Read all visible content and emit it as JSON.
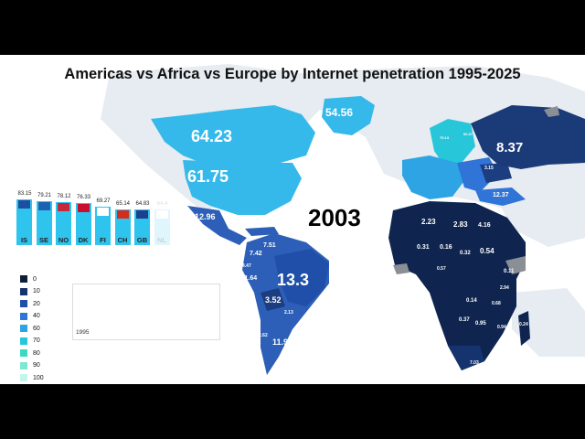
{
  "title": "Americas vs Africa vs  Europe by Internet penetration 1995-2025",
  "year": "2003",
  "map_labels": {
    "canada": "64.23",
    "usa": "61.75",
    "greenland": "54.56",
    "russia": "8.37",
    "brazil": "13.3",
    "mexico": "12.96",
    "argentina": "11.98",
    "bolivia": "3.52",
    "paraguay": "2.13",
    "chile": "2.62",
    "colombia": "7.42",
    "venezuela": "7.51",
    "peru": "11.64",
    "ecuador": "4.47",
    "ukraine": "3.15",
    "turkey": "12.37",
    "algeria": "2.23",
    "libya": "2.83",
    "egypt": "4.16",
    "sudan": "0.54",
    "nigeria": "0.31",
    "niger": "0.16",
    "chad": "0.32",
    "ethiopia": "0.11",
    "drc": "0.14",
    "angola": "0.37",
    "tanzania": "0.68",
    "zambia": "0.95",
    "madagascar": "0.24",
    "mozambique": "0.94",
    "south_africa": "7.03",
    "kenya": "2.94",
    "somalia": "0.57",
    "baltic_a": "79.13",
    "baltic_b": "60.37"
  },
  "bars": [
    {
      "code": "IS",
      "value": "83.15",
      "pct": 83.15
    },
    {
      "code": "SE",
      "value": "79.21",
      "pct": 79.21
    },
    {
      "code": "NO",
      "value": "78.12",
      "pct": 78.12
    },
    {
      "code": "DK",
      "value": "76.33",
      "pct": 76.33
    },
    {
      "code": "FI",
      "value": "69.27",
      "pct": 69.27
    },
    {
      "code": "CH",
      "value": "65.14",
      "pct": 65.14
    },
    {
      "code": "GB",
      "value": "64.83",
      "pct": 64.83
    },
    {
      "code": "NL",
      "value": "64.4",
      "pct": 64.4
    }
  ],
  "legend": [
    {
      "label": "0",
      "color": "#0c1e3c"
    },
    {
      "label": "10",
      "color": "#15336e"
    },
    {
      "label": "20",
      "color": "#1f4fa8"
    },
    {
      "label": "40",
      "color": "#2f74d6"
    },
    {
      "label": "60",
      "color": "#2ea4e4"
    },
    {
      "label": "70",
      "color": "#28c6d9"
    },
    {
      "label": "80",
      "color": "#3cd9c2"
    },
    {
      "label": "90",
      "color": "#7ae8d4"
    },
    {
      "label": "100",
      "color": "#c4f5ec"
    }
  ],
  "line_chart": {
    "start_label": "1995"
  },
  "colors": {
    "land_nodata": "#e6ecf1",
    "nodata_gray": "#8a8f96",
    "na_light": "#35b9ea",
    "sa_mid": "#2d5fb8",
    "sa_dark": "#1c3d80",
    "africa": "#0f2550",
    "russia": "#1a3a78"
  }
}
